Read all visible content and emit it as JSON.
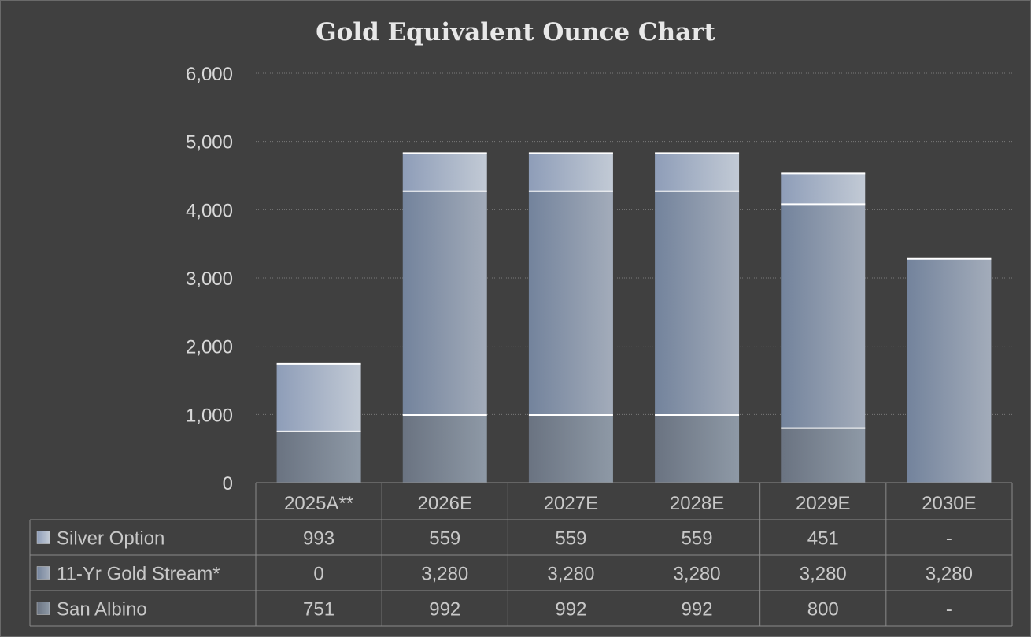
{
  "chart_data": {
    "type": "bar",
    "stacked": true,
    "title": "Gold Equivalent Ounce Chart",
    "categories": [
      "2025A**",
      "2026E",
      "2027E",
      "2028E",
      "2029E",
      "2030E"
    ],
    "ylim": [
      0,
      6000
    ],
    "yticks": [
      0,
      1000,
      2000,
      3000,
      4000,
      5000,
      6000
    ],
    "ytick_labels": [
      "0",
      "1,000",
      "2,000",
      "3,000",
      "4,000",
      "5,000",
      "6,000"
    ],
    "grid": true,
    "legend": "data-table-bottom",
    "series": [
      {
        "name": "San Albino",
        "values": [
          751,
          992,
          992,
          992,
          800,
          0
        ],
        "labels": [
          "751",
          "992",
          "992",
          "992",
          "800",
          "-"
        ]
      },
      {
        "name": "11-Yr Gold Stream*",
        "values": [
          0,
          3280,
          3280,
          3280,
          3280,
          3280
        ],
        "labels": [
          "0",
          "3,280",
          "3,280",
          "3,280",
          "3,280",
          "3,280"
        ]
      },
      {
        "name": "Silver Option",
        "values": [
          993,
          559,
          559,
          559,
          451,
          0
        ],
        "labels": [
          "993",
          "559",
          "559",
          "559",
          "451",
          "-"
        ]
      }
    ],
    "table_row_order": [
      "Silver Option",
      "11-Yr Gold Stream*",
      "San Albino"
    ],
    "colors": {
      "background": "#404040",
      "San Albino": [
        "#6a7381",
        "#8e99a6"
      ],
      "11-Yr Gold Stream*": [
        "#73839c",
        "#a3acba"
      ],
      "Silver Option": [
        "#8e9db8",
        "#c2cad5"
      ],
      "grid": "#7a7a7a",
      "table_border": "#8a8a8a",
      "text": "#c8c8c8"
    }
  }
}
